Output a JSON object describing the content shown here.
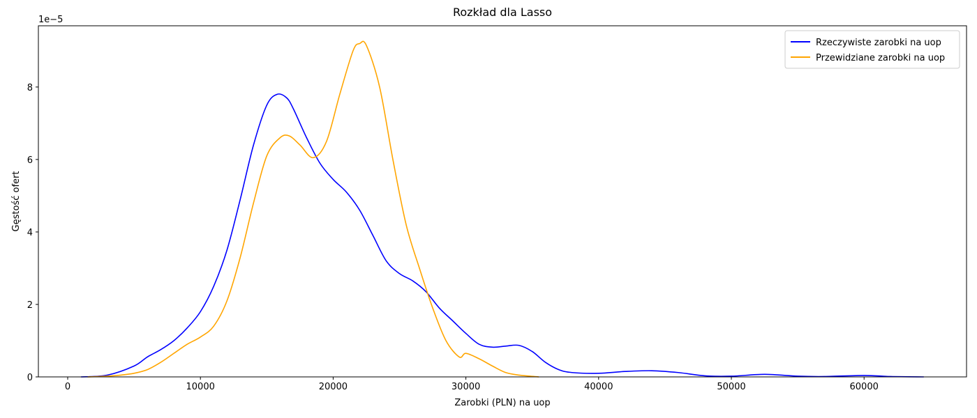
{
  "chart_data": {
    "type": "line",
    "title": "Rozkład dla Lasso",
    "x_label": "Zarobki (PLN) na uop",
    "y_label": "Gęstość ofert",
    "y_offset_label": "1e−5",
    "xlim": [
      -2208,
      67718
    ],
    "ylim": [
      0,
      9.69
    ],
    "xticks": [
      0,
      10000,
      20000,
      30000,
      40000,
      50000,
      60000
    ],
    "yticks": [
      0,
      2,
      4,
      6,
      8
    ],
    "legend": "upper right",
    "grid": false,
    "series": [
      {
        "name": "Rzeczywiste zarobki na uop",
        "color": "#0000ff",
        "x": [
          1000,
          3000,
          5000,
          6000,
          7000,
          8000,
          9000,
          10000,
          11000,
          12000,
          13000,
          14000,
          15000,
          15800,
          16500,
          17000,
          18000,
          19000,
          20000,
          21000,
          22000,
          23000,
          24000,
          25000,
          26000,
          27000,
          28000,
          29000,
          30000,
          31000,
          32000,
          33000,
          34000,
          35000,
          36000,
          37000,
          38000,
          40000,
          42000,
          44000,
          46000,
          48000,
          50000,
          52500,
          55000,
          57000,
          60000,
          62000,
          64500
        ],
        "values": [
          0,
          0.05,
          0.3,
          0.55,
          0.75,
          1.0,
          1.35,
          1.8,
          2.5,
          3.5,
          4.9,
          6.4,
          7.5,
          7.8,
          7.7,
          7.4,
          6.6,
          5.9,
          5.45,
          5.1,
          4.6,
          3.9,
          3.2,
          2.85,
          2.65,
          2.35,
          1.9,
          1.55,
          1.2,
          0.9,
          0.82,
          0.85,
          0.87,
          0.7,
          0.4,
          0.2,
          0.12,
          0.1,
          0.15,
          0.17,
          0.12,
          0.03,
          0.02,
          0.07,
          0.02,
          0.01,
          0.04,
          0.01,
          0
        ]
      },
      {
        "name": "Przewidziane zarobki na uop",
        "color": "#ffa500",
        "x": [
          1500,
          3000,
          4000,
          5000,
          6000,
          7000,
          8000,
          9000,
          10000,
          11000,
          12000,
          13000,
          14000,
          15000,
          16000,
          16700,
          17500,
          18500,
          19500,
          20500,
          21500,
          22000,
          22500,
          23500,
          24500,
          25500,
          26500,
          27500,
          28500,
          29500,
          30000,
          31000,
          32000,
          33000,
          34000,
          35500
        ],
        "values": [
          0,
          0.02,
          0.05,
          0.1,
          0.2,
          0.4,
          0.65,
          0.9,
          1.1,
          1.4,
          2.1,
          3.3,
          4.8,
          6.1,
          6.6,
          6.65,
          6.4,
          6.05,
          6.5,
          7.8,
          9.0,
          9.2,
          9.15,
          8.0,
          6.0,
          4.2,
          3.0,
          1.9,
          1.0,
          0.55,
          0.65,
          0.5,
          0.3,
          0.12,
          0.05,
          0
        ]
      }
    ]
  }
}
